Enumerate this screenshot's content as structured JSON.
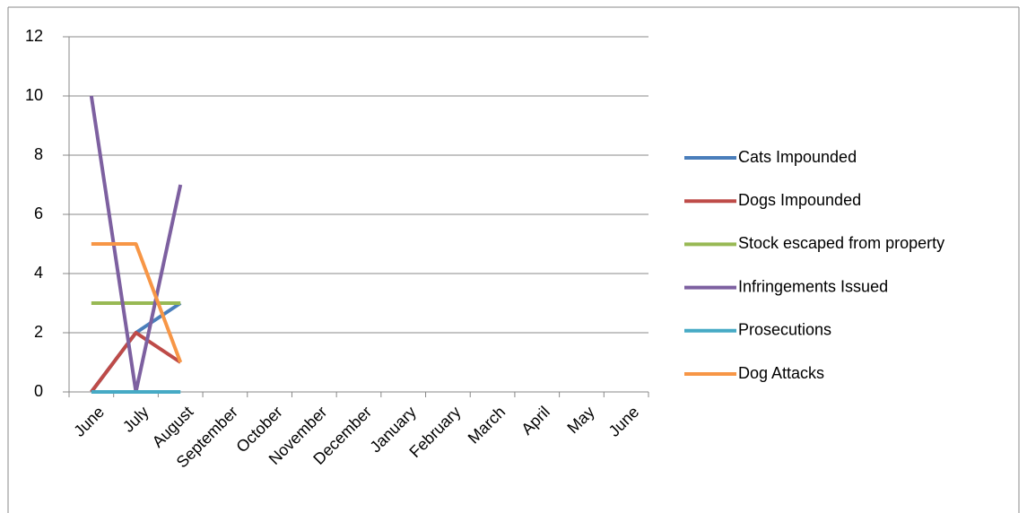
{
  "chart_data": {
    "type": "line",
    "categories": [
      "June",
      "July",
      "August",
      "September",
      "October",
      "November",
      "December",
      "January",
      "February",
      "March",
      "April",
      "May",
      "June"
    ],
    "series": [
      {
        "name": "Cats Impounded",
        "color": "#4a7ebb",
        "values": [
          0,
          2,
          3,
          null,
          null,
          null,
          null,
          null,
          null,
          null,
          null,
          null,
          null
        ]
      },
      {
        "name": "Dogs Impounded",
        "color": "#be4b48",
        "values": [
          0,
          2,
          1,
          null,
          null,
          null,
          null,
          null,
          null,
          null,
          null,
          null,
          null
        ]
      },
      {
        "name": "Stock escaped from property",
        "color": "#98b954",
        "values": [
          3,
          3,
          3,
          null,
          null,
          null,
          null,
          null,
          null,
          null,
          null,
          null,
          null
        ]
      },
      {
        "name": "Infringements Issued",
        "color": "#7d60a0",
        "values": [
          10,
          0,
          7,
          null,
          null,
          null,
          null,
          null,
          null,
          null,
          null,
          null,
          null
        ]
      },
      {
        "name": "Prosecutions",
        "color": "#46aac5",
        "values": [
          0,
          0,
          0,
          null,
          null,
          null,
          null,
          null,
          null,
          null,
          null,
          null,
          null
        ]
      },
      {
        "name": "Dog Attacks",
        "color": "#f79646",
        "values": [
          5,
          5,
          1,
          null,
          null,
          null,
          null,
          null,
          null,
          null,
          null,
          null,
          null
        ]
      }
    ],
    "ylim": [
      0,
      12
    ],
    "yticks": [
      0,
      2,
      4,
      6,
      8,
      10,
      12
    ],
    "grid": true,
    "legend": "right"
  }
}
